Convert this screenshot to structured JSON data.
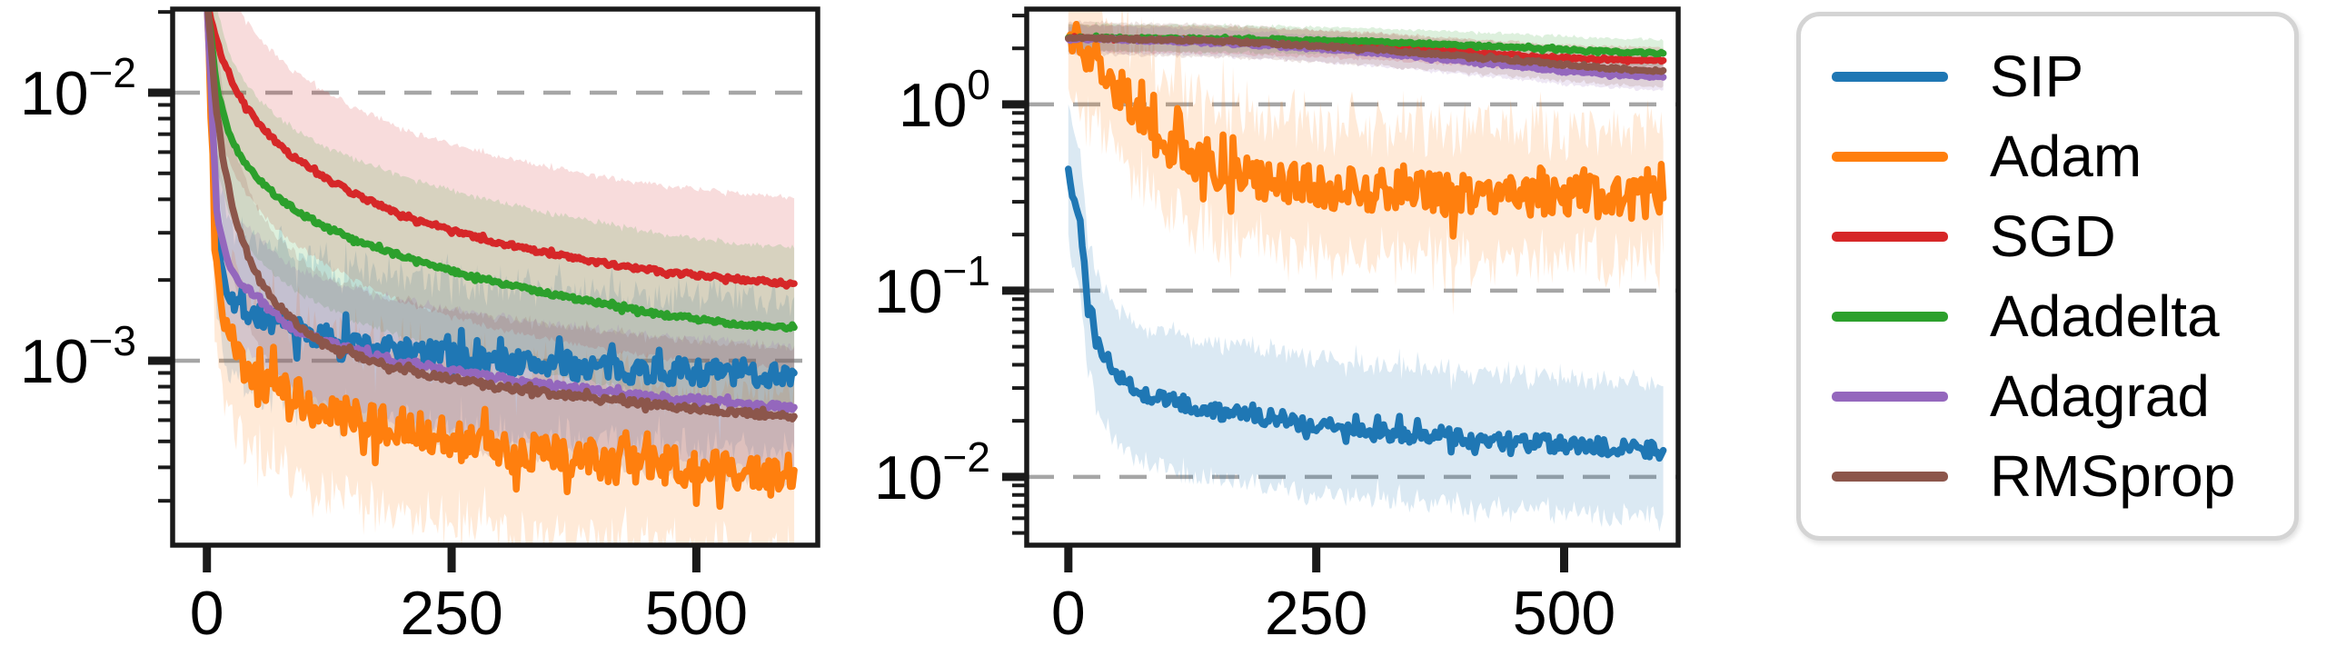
{
  "figure": {
    "background": "#ffffff",
    "grid_color": "#a6a6a6",
    "spine_color": "#1a1a1a"
  },
  "legend": {
    "position": "right",
    "items": [
      {
        "label": "SIP",
        "color": "#1f77b4"
      },
      {
        "label": "Adam",
        "color": "#ff7f0e"
      },
      {
        "label": "SGD",
        "color": "#d62728"
      },
      {
        "label": "Adadelta",
        "color": "#2ca02c"
      },
      {
        "label": "Adagrad",
        "color": "#9467bd"
      },
      {
        "label": "RMSprop",
        "color": "#8c564b"
      }
    ]
  },
  "chart_data": [
    {
      "id": "left",
      "type": "line",
      "y_scale": "log",
      "grid": "dashed-horizontal-major",
      "xlim": [
        -35,
        624
      ],
      "ylim": [
        0.000205,
        0.0205
      ],
      "x_ticks": [
        {
          "value": 0,
          "label": "0"
        },
        {
          "value": 250,
          "label": "250"
        },
        {
          "value": 500,
          "label": "500"
        }
      ],
      "y_major_exps": [
        -2,
        -3
      ],
      "x": [
        0,
        10,
        20,
        30,
        40,
        50,
        60,
        70,
        80,
        90,
        100,
        110,
        120,
        130,
        140,
        150,
        160,
        170,
        180,
        190,
        200,
        210,
        220,
        230,
        240,
        250,
        260,
        270,
        280,
        290,
        300,
        310,
        320,
        330,
        340,
        350,
        360,
        370,
        380,
        390,
        400,
        410,
        420,
        430,
        440,
        450,
        460,
        470,
        480,
        490,
        500,
        510,
        520,
        530,
        540,
        550,
        560,
        570,
        580,
        590,
        600
      ],
      "series": [
        {
          "name": "SIP",
          "color": "#1f77b4",
          "noise": 0.05,
          "band_spread": 1.9,
          "values": [
            0.022,
            0.003,
            0.0019,
            0.00165,
            0.00155,
            0.00148,
            0.00143,
            0.00138,
            0.00134,
            0.0013,
            0.00127,
            0.00124,
            0.00122,
            0.0012,
            0.00118,
            0.00116,
            0.00114,
            0.00113,
            0.00111,
            0.0011,
            0.00109,
            0.00108,
            0.00107,
            0.00106,
            0.00105,
            0.00104,
            0.00103,
            0.00102,
            0.00101,
            0.001,
            0.001,
            0.00099,
            0.00098,
            0.00098,
            0.00097,
            0.00097,
            0.00096,
            0.00096,
            0.00095,
            0.00095,
            0.00094,
            0.00094,
            0.00093,
            0.00093,
            0.00093,
            0.00092,
            0.00092,
            0.00092,
            0.00091,
            0.00091,
            0.00091,
            0.00091,
            0.0009,
            0.0009,
            0.0009,
            0.0009,
            0.00089,
            0.00089,
            0.00089,
            0.0009,
            0.0009
          ]
        },
        {
          "name": "Adam",
          "color": "#ff7f0e",
          "noise": 0.075,
          "band_spread": 2.0,
          "values": [
            0.022,
            0.002,
            0.00125,
            0.00105,
            0.00095,
            0.00089,
            0.00084,
            0.0008,
            0.00077,
            0.00074,
            0.00071,
            0.00069,
            0.00067,
            0.00065,
            0.00063,
            0.00062,
            0.0006,
            0.00059,
            0.00058,
            0.00057,
            0.00056,
            0.00055,
            0.00054,
            0.00053,
            0.00052,
            0.00051,
            0.0005,
            0.00049,
            0.00049,
            0.00048,
            0.00047,
            0.00047,
            0.00046,
            0.00046,
            0.00045,
            0.00045,
            0.00044,
            0.00044,
            0.00043,
            0.00043,
            0.00043,
            0.00042,
            0.00042,
            0.00042,
            0.00041,
            0.00041,
            0.00041,
            0.00041,
            0.0004,
            0.0004,
            0.0004,
            0.0004,
            0.0004,
            0.00039,
            0.00039,
            0.00039,
            0.00039,
            0.00039,
            0.00039,
            0.00039,
            0.00039
          ]
        },
        {
          "name": "SGD",
          "color": "#d62728",
          "noise": 0.008,
          "band_spread": 2.1,
          "values": [
            0.022,
            0.0155,
            0.0122,
            0.0102,
            0.0089,
            0.0079,
            0.0072,
            0.0066,
            0.0061,
            0.0057,
            0.0054,
            0.0051,
            0.0048,
            0.0046,
            0.0044,
            0.0042,
            0.00405,
            0.0039,
            0.00375,
            0.00362,
            0.0035,
            0.0034,
            0.0033,
            0.00322,
            0.00314,
            0.00306,
            0.00299,
            0.00292,
            0.00286,
            0.0028,
            0.00274,
            0.00269,
            0.00264,
            0.00259,
            0.00255,
            0.00251,
            0.00247,
            0.00243,
            0.00239,
            0.00236,
            0.00233,
            0.0023,
            0.00227,
            0.00224,
            0.00221,
            0.00219,
            0.00216,
            0.00214,
            0.00212,
            0.0021,
            0.00208,
            0.00206,
            0.00205,
            0.00203,
            0.00202,
            0.002,
            0.00199,
            0.00198,
            0.00196,
            0.00195,
            0.00194
          ]
        },
        {
          "name": "Adadelta",
          "color": "#2ca02c",
          "noise": 0.008,
          "band_spread": 2.0,
          "values": [
            0.022,
            0.0105,
            0.0075,
            0.0062,
            0.0054,
            0.0049,
            0.0045,
            0.00415,
            0.00388,
            0.00366,
            0.00347,
            0.00331,
            0.00317,
            0.00305,
            0.00294,
            0.00284,
            0.00275,
            0.00266,
            0.00258,
            0.00251,
            0.00244,
            0.00238,
            0.00232,
            0.00226,
            0.00221,
            0.00216,
            0.00211,
            0.00207,
            0.00203,
            0.00199,
            0.00195,
            0.00191,
            0.00188,
            0.00184,
            0.00181,
            0.00178,
            0.00175,
            0.00172,
            0.00169,
            0.00167,
            0.00164,
            0.00162,
            0.00159,
            0.00157,
            0.00155,
            0.00153,
            0.00151,
            0.00149,
            0.00147,
            0.00145,
            0.00143,
            0.00142,
            0.0014,
            0.00139,
            0.00137,
            0.00136,
            0.00135,
            0.00134,
            0.00134,
            0.00133,
            0.00133
          ]
        },
        {
          "name": "Adagrad",
          "color": "#9467bd",
          "noise": 0.012,
          "band_spread": 1.7,
          "values": [
            0.022,
            0.0036,
            0.0024,
            0.002,
            0.00185,
            0.00175,
            0.0016,
            0.0015,
            0.00138,
            0.00131,
            0.00126,
            0.00122,
            0.00118,
            0.00115,
            0.00112,
            0.0011,
            0.00107,
            0.00105,
            0.00103,
            0.00101,
            0.00099,
            0.00098,
            0.00096,
            0.00095,
            0.00093,
            0.00092,
            0.00091,
            0.00089,
            0.00088,
            0.00087,
            0.00086,
            0.00085,
            0.00084,
            0.00083,
            0.00082,
            0.00081,
            0.0008,
            0.00079,
            0.00079,
            0.00078,
            0.00077,
            0.00076,
            0.00076,
            0.00075,
            0.00074,
            0.00074,
            0.00073,
            0.00073,
            0.00072,
            0.00072,
            0.00071,
            0.00071,
            0.0007,
            0.0007,
            0.00069,
            0.00069,
            0.00068,
            0.00068,
            0.00068,
            0.00067,
            0.00067
          ]
        },
        {
          "name": "RMSprop",
          "color": "#8c564b",
          "noise": 0.012,
          "band_spread": 1.8,
          "values": [
            0.022,
            0.0085,
            0.0048,
            0.0033,
            0.00258,
            0.00215,
            0.00187,
            0.00166,
            0.00151,
            0.00139,
            0.0013,
            0.00123,
            0.00117,
            0.00112,
            0.00108,
            0.00105,
            0.00102,
            0.00099,
            0.00097,
            0.00095,
            0.00093,
            0.00091,
            0.0009,
            0.00088,
            0.00087,
            0.00086,
            0.00084,
            0.00083,
            0.00082,
            0.00081,
            0.0008,
            0.00079,
            0.00078,
            0.00077,
            0.00077,
            0.00076,
            0.00075,
            0.00074,
            0.00074,
            0.00073,
            0.00072,
            0.00071,
            0.00071,
            0.0007,
            0.0007,
            0.00069,
            0.00068,
            0.00068,
            0.00067,
            0.00067,
            0.00066,
            0.00066,
            0.00065,
            0.00065,
            0.00064,
            0.00064,
            0.00063,
            0.00063,
            0.00063,
            0.00062,
            0.00062
          ]
        }
      ]
    },
    {
      "id": "right",
      "type": "line",
      "y_scale": "log",
      "grid": "dashed-horizontal-major",
      "xlim": [
        -42,
        615
      ],
      "ylim": [
        0.0043,
        3.25
      ],
      "x_ticks": [
        {
          "value": 0,
          "label": "0"
        },
        {
          "value": 250,
          "label": "250"
        },
        {
          "value": 500,
          "label": "500"
        }
      ],
      "y_major_exps": [
        0,
        -1,
        -2
      ],
      "x": [
        0,
        10,
        20,
        30,
        40,
        50,
        60,
        70,
        80,
        90,
        100,
        110,
        120,
        130,
        140,
        150,
        160,
        170,
        180,
        190,
        200,
        210,
        220,
        230,
        240,
        250,
        260,
        270,
        280,
        290,
        300,
        310,
        320,
        330,
        340,
        350,
        360,
        370,
        380,
        390,
        400,
        410,
        420,
        430,
        440,
        450,
        460,
        470,
        480,
        490,
        500,
        510,
        520,
        530,
        540,
        550,
        560,
        570,
        580,
        590,
        600
      ],
      "series": [
        {
          "name": "SIP",
          "color": "#1f77b4",
          "noise": 0.045,
          "band_spread": 2.3,
          "values": [
            0.45,
            0.28,
            0.08,
            0.05,
            0.04,
            0.035,
            0.0315,
            0.0295,
            0.028,
            0.0268,
            0.0258,
            0.025,
            0.0243,
            0.0237,
            0.0231,
            0.0226,
            0.0222,
            0.0218,
            0.0214,
            0.0211,
            0.0208,
            0.0205,
            0.0202,
            0.0199,
            0.0197,
            0.0194,
            0.0196,
            0.0199,
            0.0188,
            0.0183,
            0.0179,
            0.0176,
            0.0174,
            0.0172,
            0.017,
            0.0169,
            0.0167,
            0.0166,
            0.0164,
            0.0163,
            0.0161,
            0.016,
            0.0158,
            0.0157,
            0.0156,
            0.0154,
            0.0153,
            0.0152,
            0.0151,
            0.015,
            0.0149,
            0.0148,
            0.0147,
            0.0146,
            0.0145,
            0.0144,
            0.0143,
            0.0142,
            0.0141,
            0.014,
            0.0139
          ]
        },
        {
          "name": "Adam",
          "color": "#ff7f0e",
          "noise": 0.115,
          "band_spread": 2.2,
          "values": [
            2.27,
            2.2,
            1.95,
            1.68,
            1.44,
            1.24,
            1.06,
            0.91,
            0.79,
            0.69,
            0.61,
            0.55,
            0.51,
            0.48,
            0.455,
            0.435,
            0.42,
            0.41,
            0.4,
            0.39,
            0.385,
            0.38,
            0.375,
            0.37,
            0.365,
            0.36,
            0.357,
            0.354,
            0.351,
            0.348,
            0.345,
            0.343,
            0.341,
            0.339,
            0.337,
            0.335,
            0.334,
            0.332,
            0.331,
            0.329,
            0.328,
            0.327,
            0.326,
            0.325,
            0.324,
            0.323,
            0.322,
            0.321,
            0.32,
            0.32,
            0.319,
            0.318,
            0.318,
            0.317,
            0.317,
            0.316,
            0.316,
            0.315,
            0.315,
            0.314,
            0.314
          ]
        },
        {
          "name": "SGD",
          "color": "#d62728",
          "noise": 0.006,
          "band_spread": 1.18,
          "values": [
            2.27,
            2.27,
            2.27,
            2.26,
            2.26,
            2.26,
            2.25,
            2.25,
            2.25,
            2.24,
            2.24,
            2.23,
            2.23,
            2.22,
            2.22,
            2.21,
            2.21,
            2.2,
            2.19,
            2.18,
            2.17,
            2.16,
            2.15,
            2.14,
            2.13,
            2.12,
            2.11,
            2.1,
            2.09,
            2.07,
            2.06,
            2.05,
            2.03,
            2.02,
            2.0,
            1.99,
            1.97,
            1.96,
            1.94,
            1.93,
            1.91,
            1.9,
            1.88,
            1.87,
            1.85,
            1.84,
            1.83,
            1.81,
            1.8,
            1.79,
            1.78,
            1.77,
            1.76,
            1.75,
            1.75,
            1.74,
            1.74,
            1.73,
            1.73,
            1.72,
            1.72
          ]
        },
        {
          "name": "Adadelta",
          "color": "#2ca02c",
          "noise": 0.006,
          "band_spread": 1.18,
          "values": [
            2.28,
            2.28,
            2.28,
            2.28,
            2.28,
            2.27,
            2.27,
            2.27,
            2.27,
            2.27,
            2.26,
            2.26,
            2.26,
            2.26,
            2.25,
            2.25,
            2.25,
            2.24,
            2.24,
            2.24,
            2.23,
            2.23,
            2.22,
            2.22,
            2.21,
            2.21,
            2.2,
            2.2,
            2.19,
            2.18,
            2.18,
            2.17,
            2.16,
            2.15,
            2.14,
            2.13,
            2.12,
            2.11,
            2.1,
            2.09,
            2.08,
            2.07,
            2.06,
            2.05,
            2.04,
            2.03,
            2.02,
            2.0,
            1.99,
            1.98,
            1.97,
            1.96,
            1.95,
            1.94,
            1.93,
            1.92,
            1.91,
            1.9,
            1.89,
            1.89,
            1.88
          ]
        },
        {
          "name": "Adagrad",
          "color": "#9467bd",
          "noise": 0.007,
          "band_spread": 1.18,
          "values": [
            2.25,
            2.25,
            2.24,
            2.24,
            2.23,
            2.23,
            2.22,
            2.21,
            2.21,
            2.2,
            2.19,
            2.18,
            2.17,
            2.16,
            2.15,
            2.14,
            2.13,
            2.11,
            2.1,
            2.09,
            2.07,
            2.06,
            2.04,
            2.03,
            2.01,
            2.0,
            1.98,
            1.96,
            1.95,
            1.93,
            1.91,
            1.89,
            1.87,
            1.85,
            1.83,
            1.81,
            1.79,
            1.77,
            1.75,
            1.73,
            1.71,
            1.69,
            1.67,
            1.65,
            1.63,
            1.61,
            1.59,
            1.57,
            1.55,
            1.53,
            1.51,
            1.5,
            1.48,
            1.47,
            1.45,
            1.44,
            1.43,
            1.42,
            1.41,
            1.4,
            1.4
          ]
        },
        {
          "name": "RMSprop",
          "color": "#8c564b",
          "noise": 0.007,
          "band_spread": 1.22,
          "values": [
            2.26,
            2.26,
            2.26,
            2.25,
            2.25,
            2.25,
            2.24,
            2.24,
            2.23,
            2.23,
            2.22,
            2.21,
            2.21,
            2.2,
            2.19,
            2.18,
            2.17,
            2.16,
            2.15,
            2.14,
            2.13,
            2.12,
            2.1,
            2.09,
            2.08,
            2.06,
            2.05,
            2.03,
            2.02,
            2.0,
            1.99,
            1.97,
            1.95,
            1.94,
            1.92,
            1.9,
            1.88,
            1.87,
            1.85,
            1.83,
            1.81,
            1.79,
            1.78,
            1.76,
            1.74,
            1.72,
            1.7,
            1.69,
            1.67,
            1.65,
            1.63,
            1.62,
            1.6,
            1.59,
            1.57,
            1.56,
            1.55,
            1.54,
            1.53,
            1.52,
            1.52
          ]
        }
      ]
    }
  ]
}
